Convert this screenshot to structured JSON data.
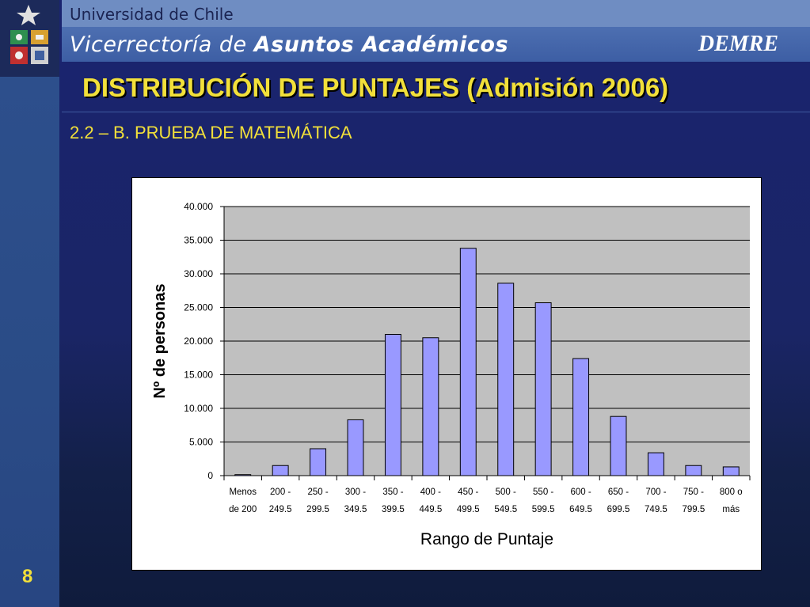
{
  "header": {
    "university": "Universidad de Chile",
    "vicerrectoria_light": "Vicerrectoría de",
    "vicerrectoria_bold": "Asuntos Académicos",
    "brand": "DEMRE"
  },
  "slide": {
    "title": "DISTRIBUCIÓN DE PUNTAJES (Admisión 2006)",
    "subtitle": "2.2 – B. PRUEBA DE MATEMÁTICA",
    "page_number": "8"
  },
  "colors": {
    "title_yellow": "#f2e03a",
    "bar_fill": "#9999ff",
    "plot_bg": "#c0c0c0"
  },
  "chart_data": {
    "type": "bar",
    "xlabel": "Rango de Puntaje",
    "ylabel": "Nº de personas",
    "ylim": [
      0,
      40000
    ],
    "yticks": [
      0,
      5000,
      10000,
      15000,
      20000,
      25000,
      30000,
      35000,
      40000
    ],
    "ytick_labels": [
      "0",
      "5.000",
      "10.000",
      "15.000",
      "20.000",
      "25.000",
      "30.000",
      "35.000",
      "40.000"
    ],
    "grid": true,
    "categories": [
      [
        "Menos",
        "de 200"
      ],
      [
        "200 -",
        "249.5"
      ],
      [
        "250 -",
        "299.5"
      ],
      [
        "300 -",
        "349.5"
      ],
      [
        "350 -",
        "399.5"
      ],
      [
        "400 -",
        "449.5"
      ],
      [
        "450 -",
        "499.5"
      ],
      [
        "500 -",
        "549.5"
      ],
      [
        "550 -",
        "599.5"
      ],
      [
        "600 -",
        "649.5"
      ],
      [
        "650 -",
        "699.5"
      ],
      [
        "700 -",
        "749.5"
      ],
      [
        "750 -",
        "799.5"
      ],
      [
        "800 o",
        "más"
      ]
    ],
    "values": [
      150,
      1500,
      4000,
      8300,
      21000,
      20500,
      33800,
      28600,
      25700,
      17400,
      8800,
      3400,
      1500,
      1300
    ]
  }
}
